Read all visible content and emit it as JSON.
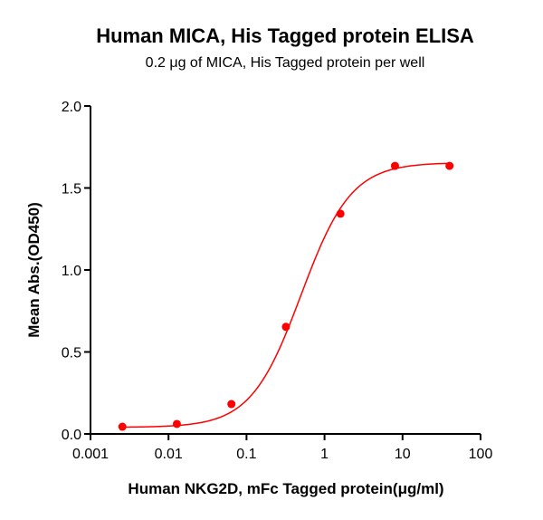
{
  "chart_data": {
    "type": "scatter",
    "title": "Human MICA, His Tagged protein ELISA",
    "subtitle": "0.2 μg of MICA, His Tagged protein per well",
    "xlabel": "Human NKG2D, mFc Tagged protein(μg/ml)",
    "ylabel": "Mean Abs.(OD450)",
    "xscale": "log",
    "xlim": [
      0.001,
      100
    ],
    "ylim": [
      0.0,
      2.0
    ],
    "xticks": [
      "0.001",
      "0.01",
      "0.1",
      "1",
      "10",
      "100"
    ],
    "yticks": [
      "0.0",
      "0.5",
      "1.0",
      "1.5",
      "2.0"
    ],
    "grid": false,
    "legend": null,
    "series": [
      {
        "name": "ELISA",
        "color": "#ff0000",
        "x": [
          0.00256,
          0.0128,
          0.064,
          0.32,
          1.6,
          8,
          40
        ],
        "y": [
          0.044,
          0.061,
          0.182,
          0.653,
          1.343,
          1.635,
          1.635
        ],
        "fit": "4PL sigmoidal curve"
      }
    ]
  }
}
